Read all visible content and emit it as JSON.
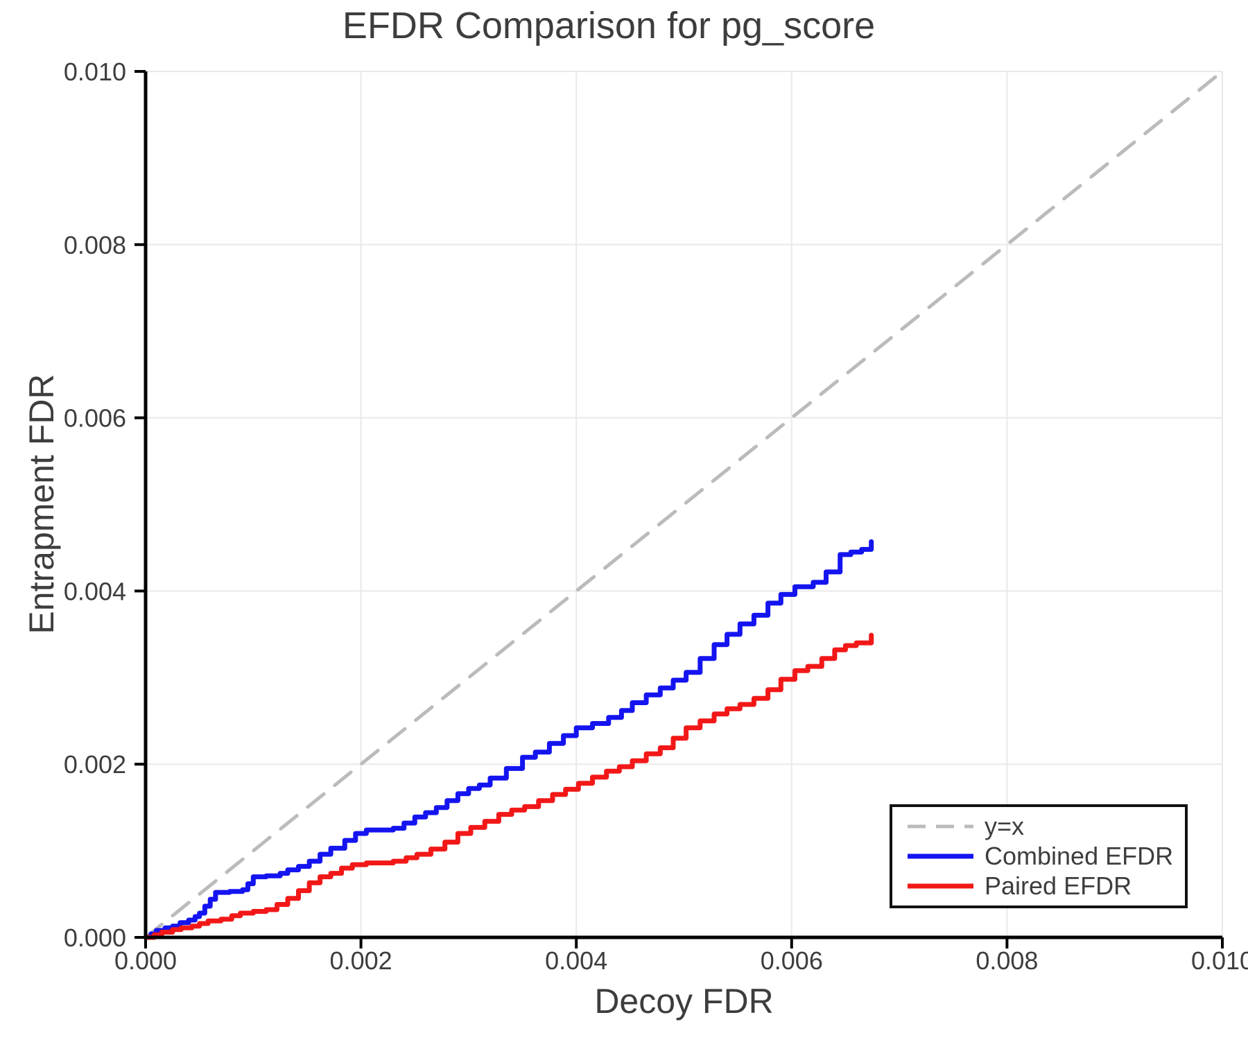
{
  "figure": {
    "background": "#ffffff"
  },
  "chart_data": {
    "type": "line",
    "title": "EFDR Comparison for pg_score",
    "xlabel": "Decoy FDR",
    "ylabel": "Entrapment FDR",
    "xlim": [
      0.0,
      0.01
    ],
    "ylim": [
      0.0,
      0.01
    ],
    "grid": true,
    "grid_color": "#e9e9e9",
    "axis_color": "#000000",
    "text_color": "#3d3d3d",
    "legend_position": "lower right",
    "x_ticks": {
      "values": [
        0.0,
        0.002,
        0.004,
        0.006,
        0.008,
        0.01
      ],
      "labels": [
        "0.000",
        "0.002",
        "0.004",
        "0.006",
        "0.008",
        "0.010"
      ]
    },
    "y_ticks": {
      "values": [
        0.0,
        0.002,
        0.004,
        0.006,
        0.008,
        0.01
      ],
      "labels": [
        "0.000",
        "0.002",
        "0.004",
        "0.006",
        "0.008",
        "0.010"
      ]
    },
    "series": [
      {
        "name": "y=x",
        "color": "#bbbbbb",
        "style": "dashed",
        "interp": "linear",
        "x": [
          0.0,
          0.01
        ],
        "y": [
          0.0,
          0.01
        ]
      },
      {
        "name": "Combined EFDR",
        "color": "#1414f0",
        "style": "solid",
        "interp": "step",
        "x": [
          0.0,
          5e-05,
          0.0001,
          0.00018,
          0.00025,
          0.00032,
          0.0004,
          0.00046,
          0.0005,
          0.00055,
          0.0006,
          0.00065,
          0.00078,
          0.0009,
          0.00095,
          0.001,
          0.00112,
          0.00125,
          0.00132,
          0.00142,
          0.00152,
          0.00162,
          0.00172,
          0.00185,
          0.00195,
          0.00205,
          0.0023,
          0.0024,
          0.0025,
          0.0026,
          0.0027,
          0.0028,
          0.0029,
          0.003,
          0.0031,
          0.0032,
          0.00335,
          0.0035,
          0.00362,
          0.00375,
          0.00388,
          0.004,
          0.00415,
          0.0043,
          0.00442,
          0.00452,
          0.00465,
          0.00478,
          0.0049,
          0.00502,
          0.00515,
          0.00528,
          0.0054,
          0.00552,
          0.00565,
          0.00578,
          0.0059,
          0.00603,
          0.0062,
          0.00632,
          0.00645,
          0.00655,
          0.00665,
          0.00674
        ],
        "y": [
          0.0,
          4e-05,
          8e-05,
          0.00011,
          0.00013,
          0.00017,
          0.0002,
          0.00024,
          0.00028,
          0.00036,
          0.00044,
          0.00052,
          0.00053,
          0.00055,
          0.00062,
          0.0007,
          0.00071,
          0.00074,
          0.00078,
          0.00082,
          0.00088,
          0.00096,
          0.00103,
          0.00112,
          0.0012,
          0.00124,
          0.00126,
          0.00132,
          0.00139,
          0.00144,
          0.0015,
          0.00158,
          0.00166,
          0.00172,
          0.00176,
          0.00184,
          0.00195,
          0.00208,
          0.00214,
          0.00224,
          0.00233,
          0.00242,
          0.00247,
          0.00254,
          0.00262,
          0.00271,
          0.0028,
          0.00288,
          0.00297,
          0.00306,
          0.00322,
          0.00338,
          0.0035,
          0.00362,
          0.00372,
          0.00386,
          0.00396,
          0.00405,
          0.0041,
          0.00422,
          0.00442,
          0.00445,
          0.00448,
          0.00457
        ]
      },
      {
        "name": "Paired EFDR",
        "color": "#f21818",
        "style": "solid",
        "interp": "step",
        "x": [
          0.0,
          8e-05,
          0.00015,
          0.00025,
          0.00033,
          0.00043,
          0.0005,
          0.00058,
          0.0007,
          0.0008,
          0.00088,
          0.001,
          0.00112,
          0.00122,
          0.00132,
          0.00142,
          0.00152,
          0.00162,
          0.00172,
          0.00182,
          0.00192,
          0.00205,
          0.0023,
          0.00242,
          0.00252,
          0.00265,
          0.00278,
          0.0029,
          0.00302,
          0.00315,
          0.00328,
          0.0034,
          0.00352,
          0.00365,
          0.00378,
          0.0039,
          0.00402,
          0.00415,
          0.00428,
          0.0044,
          0.00452,
          0.00465,
          0.00478,
          0.0049,
          0.00502,
          0.00515,
          0.00528,
          0.0054,
          0.00552,
          0.00565,
          0.00578,
          0.0059,
          0.00603,
          0.00615,
          0.00628,
          0.0064,
          0.0065,
          0.0066,
          0.00674
        ],
        "y": [
          0.0,
          3e-05,
          6e-05,
          9e-05,
          0.00011,
          0.00013,
          0.00016,
          0.00019,
          0.00021,
          0.00025,
          0.00028,
          0.0003,
          0.00032,
          0.00038,
          0.00045,
          0.00054,
          0.00063,
          0.0007,
          0.00074,
          0.0008,
          0.00084,
          0.00086,
          0.00088,
          0.00092,
          0.00096,
          0.00102,
          0.0011,
          0.0012,
          0.00127,
          0.00134,
          0.00142,
          0.00147,
          0.00151,
          0.00158,
          0.00165,
          0.00171,
          0.00178,
          0.00185,
          0.00192,
          0.00197,
          0.00204,
          0.00212,
          0.00219,
          0.0023,
          0.00242,
          0.0025,
          0.00258,
          0.00264,
          0.00269,
          0.00276,
          0.00286,
          0.00298,
          0.00308,
          0.00313,
          0.00322,
          0.00332,
          0.00337,
          0.0034,
          0.00349
        ]
      }
    ]
  }
}
